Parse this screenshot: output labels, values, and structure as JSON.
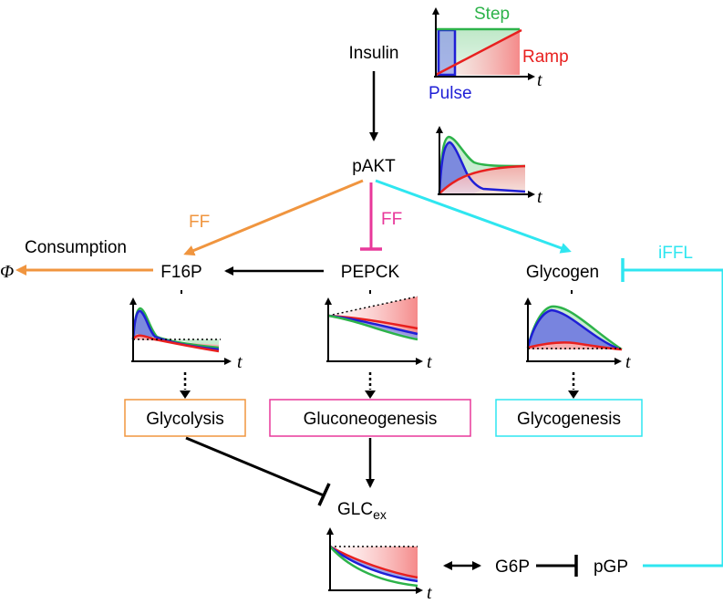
{
  "colors": {
    "step": "#2db34a",
    "ramp": "#e8201f",
    "pulse": "#1f1fd6",
    "orange": "#f0953f",
    "magenta": "#e8389a",
    "cyan": "#2fe6f0",
    "black": "#000000"
  },
  "inputs": {
    "step_label": "Step",
    "ramp_label": "Ramp",
    "pulse_label": "Pulse",
    "t_label": "t"
  },
  "nodes": {
    "insulin": "Insulin",
    "pakt": "pAKT",
    "consumption": "Consumption",
    "phi": "Φ",
    "f16p": "F16P",
    "pepck": "PEPCK",
    "glycogen": "Glycogen",
    "g6p": "G6P",
    "pgp": "pGP",
    "glc_main": "GLC",
    "glc_sub": "ex"
  },
  "edges": {
    "ff_left": "FF",
    "ff_mid": "FF",
    "iffl": "iFFL"
  },
  "processes": {
    "glycolysis": "Glycolysis",
    "gluconeogenesis": "Gluconeogenesis",
    "glycogenesis": "Glycogenesis"
  }
}
